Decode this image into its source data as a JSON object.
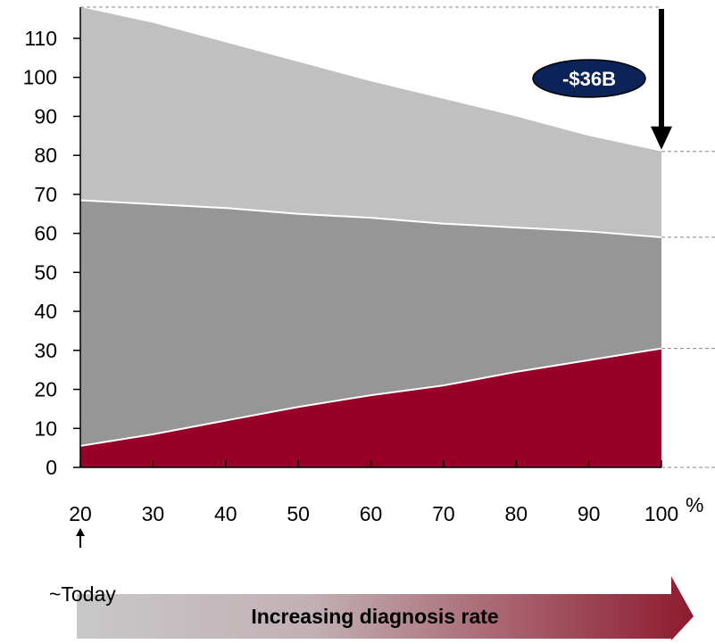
{
  "chart_data": {
    "type": "area",
    "stacked": true,
    "x": [
      20,
      30,
      40,
      50,
      60,
      70,
      80,
      90,
      100
    ],
    "series": [
      {
        "color": "#990029",
        "values": [
          5.5,
          8.5,
          12,
          15.5,
          18.5,
          21,
          24.5,
          27.5,
          30.5
        ]
      },
      {
        "color": "#969696",
        "values": [
          63,
          59,
          54.5,
          49.5,
          45.5,
          41.5,
          37,
          33,
          28.5
        ]
      },
      {
        "color": "#c0c0c0",
        "values": [
          49.5,
          46.5,
          42.5,
          39,
          35,
          32,
          28.5,
          24.5,
          22
        ]
      }
    ],
    "ylim": [
      0,
      118
    ],
    "xlim": [
      20,
      100
    ],
    "yticks": [
      0,
      10,
      20,
      30,
      40,
      50,
      60,
      70,
      80,
      90,
      100,
      110
    ],
    "xtick_labels": [
      "20",
      "30",
      "40",
      "50",
      "60",
      "70",
      "80",
      "90",
      "100"
    ],
    "x_unit": "%",
    "grid": false,
    "annotations": {
      "callout": "-$36B",
      "today_label": "~Today",
      "banner": "Increasing diagnosis rate"
    }
  }
}
